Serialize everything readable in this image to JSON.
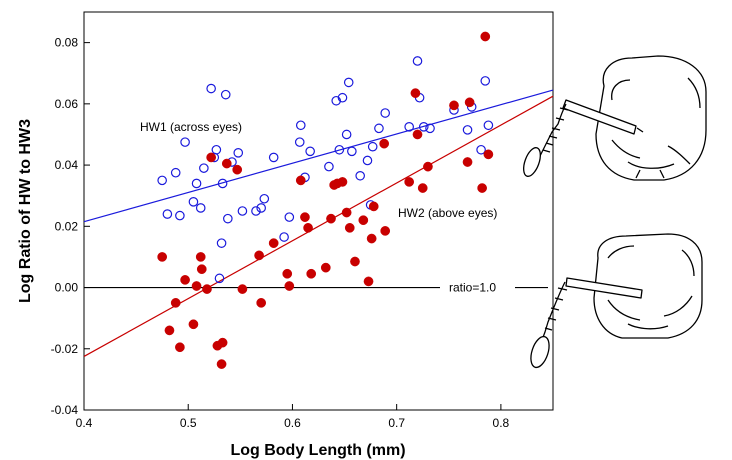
{
  "chart_data": {
    "type": "scatter",
    "title": "",
    "xlabel": "Log Body Length (mm)",
    "ylabel": "Log Ratio of HW to HW3",
    "xlim": [
      0.4,
      0.85
    ],
    "ylim": [
      -0.04,
      0.09
    ],
    "x_ticks": [
      0.4,
      0.5,
      0.6,
      0.7,
      0.8
    ],
    "x_tick_labels": [
      "0.4",
      "0.5",
      "0.6",
      "0.7",
      "0.8"
    ],
    "y_ticks": [
      -0.04,
      -0.02,
      0.0,
      0.02,
      0.04,
      0.06,
      0.08
    ],
    "y_tick_labels": [
      "-0.04",
      "-0.02",
      "0.00",
      "0.02",
      "0.04",
      "0.06",
      "0.08"
    ],
    "grid": false,
    "series": [
      {
        "name": "HW1 (across eyes)",
        "color": "#1a1adc",
        "marker": "open-circle",
        "trend": {
          "x": [
            0.4,
            0.85
          ],
          "y": [
            0.0215,
            0.0645
          ]
        },
        "points": [
          [
            0.475,
            0.035
          ],
          [
            0.48,
            0.024
          ],
          [
            0.488,
            0.0375
          ],
          [
            0.492,
            0.0235
          ],
          [
            0.497,
            0.0475
          ],
          [
            0.505,
            0.028
          ],
          [
            0.508,
            0.034
          ],
          [
            0.512,
            0.026
          ],
          [
            0.515,
            0.039
          ],
          [
            0.522,
            0.065
          ],
          [
            0.525,
            0.0425
          ],
          [
            0.527,
            0.045
          ],
          [
            0.53,
            0.003
          ],
          [
            0.532,
            0.0145
          ],
          [
            0.533,
            0.034
          ],
          [
            0.536,
            0.063
          ],
          [
            0.538,
            0.0225
          ],
          [
            0.542,
            0.041
          ],
          [
            0.548,
            0.044
          ],
          [
            0.552,
            0.025
          ],
          [
            0.565,
            0.025
          ],
          [
            0.57,
            0.026
          ],
          [
            0.573,
            0.029
          ],
          [
            0.582,
            0.0425
          ],
          [
            0.592,
            0.0165
          ],
          [
            0.597,
            0.023
          ],
          [
            0.607,
            0.0475
          ],
          [
            0.608,
            0.053
          ],
          [
            0.612,
            0.036
          ],
          [
            0.617,
            0.0445
          ],
          [
            0.635,
            0.0395
          ],
          [
            0.642,
            0.061
          ],
          [
            0.645,
            0.045
          ],
          [
            0.648,
            0.062
          ],
          [
            0.652,
            0.05
          ],
          [
            0.654,
            0.067
          ],
          [
            0.657,
            0.0445
          ],
          [
            0.665,
            0.0365
          ],
          [
            0.672,
            0.0415
          ],
          [
            0.675,
            0.027
          ],
          [
            0.677,
            0.046
          ],
          [
            0.683,
            0.052
          ],
          [
            0.689,
            0.057
          ],
          [
            0.712,
            0.0525
          ],
          [
            0.72,
            0.074
          ],
          [
            0.722,
            0.062
          ],
          [
            0.726,
            0.0525
          ],
          [
            0.732,
            0.052
          ],
          [
            0.755,
            0.058
          ],
          [
            0.768,
            0.0515
          ],
          [
            0.772,
            0.059
          ],
          [
            0.781,
            0.045
          ],
          [
            0.785,
            0.0675
          ],
          [
            0.788,
            0.053
          ]
        ]
      },
      {
        "name": "HW2 (above eyes)",
        "color": "#c80000",
        "marker": "filled-circle",
        "trend": {
          "x": [
            0.4,
            0.85
          ],
          "y": [
            -0.0225,
            0.0625
          ]
        },
        "points": [
          [
            0.475,
            0.01
          ],
          [
            0.482,
            -0.014
          ],
          [
            0.488,
            -0.005
          ],
          [
            0.492,
            -0.0195
          ],
          [
            0.497,
            0.0025
          ],
          [
            0.505,
            -0.012
          ],
          [
            0.508,
            0.0005
          ],
          [
            0.512,
            0.01
          ],
          [
            0.513,
            0.006
          ],
          [
            0.518,
            -0.0005
          ],
          [
            0.522,
            0.0425
          ],
          [
            0.528,
            -0.019
          ],
          [
            0.532,
            -0.025
          ],
          [
            0.533,
            -0.018
          ],
          [
            0.537,
            0.0405
          ],
          [
            0.547,
            0.0385
          ],
          [
            0.552,
            -0.0005
          ],
          [
            0.568,
            0.0105
          ],
          [
            0.57,
            -0.005
          ],
          [
            0.582,
            0.0145
          ],
          [
            0.595,
            0.0045
          ],
          [
            0.597,
            0.0005
          ],
          [
            0.608,
            0.035
          ],
          [
            0.612,
            0.023
          ],
          [
            0.615,
            0.0195
          ],
          [
            0.618,
            0.0045
          ],
          [
            0.632,
            0.0065
          ],
          [
            0.637,
            0.0225
          ],
          [
            0.64,
            0.0335
          ],
          [
            0.643,
            0.034
          ],
          [
            0.648,
            0.0345
          ],
          [
            0.652,
            0.0245
          ],
          [
            0.655,
            0.0195
          ],
          [
            0.66,
            0.0085
          ],
          [
            0.668,
            0.022
          ],
          [
            0.673,
            0.002
          ],
          [
            0.676,
            0.016
          ],
          [
            0.678,
            0.0265
          ],
          [
            0.688,
            0.047
          ],
          [
            0.689,
            0.0185
          ],
          [
            0.712,
            0.0345
          ],
          [
            0.718,
            0.0635
          ],
          [
            0.72,
            0.05
          ],
          [
            0.725,
            0.0325
          ],
          [
            0.73,
            0.0395
          ],
          [
            0.755,
            0.0595
          ],
          [
            0.768,
            0.041
          ],
          [
            0.77,
            0.0605
          ],
          [
            0.782,
            0.0325
          ],
          [
            0.785,
            0.082
          ],
          [
            0.788,
            0.0435
          ]
        ]
      }
    ],
    "reference_line": {
      "y": 0.0,
      "label": "ratio=1.0",
      "color": "#000000"
    },
    "annotations": [
      "HW1 (across eyes)",
      "HW2 (above eyes)"
    ]
  },
  "illustrations": [
    "ant-head-across-eyes-icon",
    "ant-head-above-eyes-icon"
  ]
}
